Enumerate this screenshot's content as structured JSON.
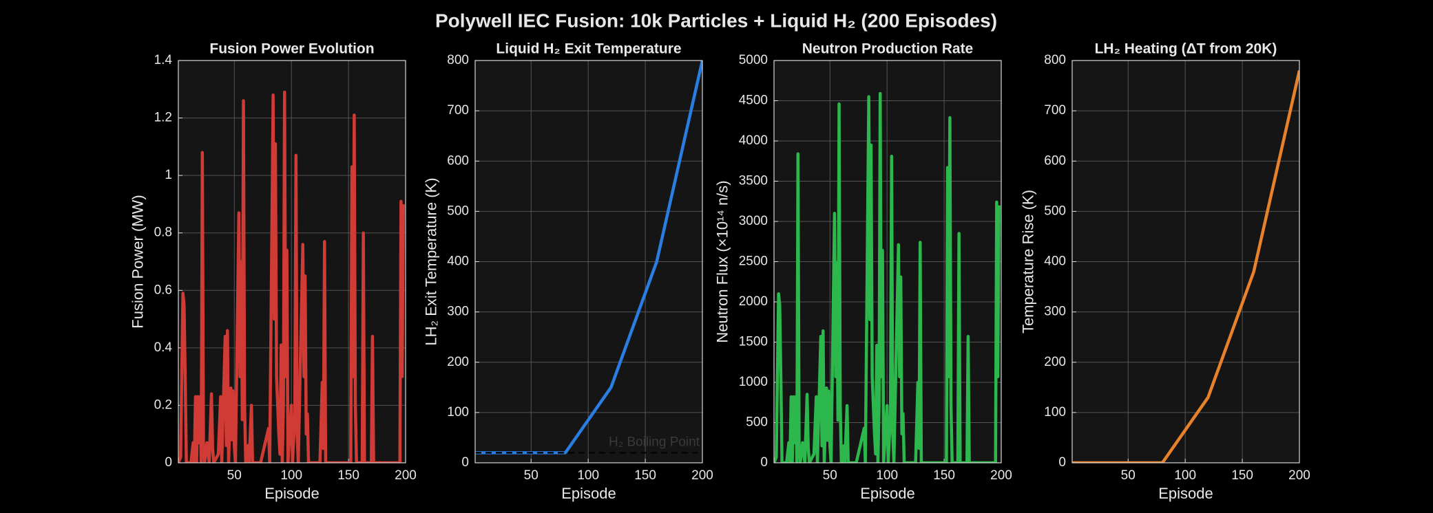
{
  "title": "Polywell IEC Fusion: 10k Particles + Liquid H₂ (200 Episodes)",
  "chart_data": [
    {
      "type": "line",
      "title": "Fusion Power Evolution",
      "xlabel": "Episode",
      "ylabel": "Fusion Power (MW)",
      "x": [
        1,
        3,
        5,
        6,
        7,
        8,
        12,
        14,
        15,
        16,
        17,
        18,
        19,
        20,
        21,
        22,
        23,
        24,
        26,
        28,
        30,
        31,
        32,
        36,
        38,
        39,
        42,
        43,
        44,
        45,
        47,
        48,
        49,
        50,
        51,
        54,
        55,
        56,
        57,
        58,
        59,
        60,
        62,
        63,
        65,
        66,
        70,
        73,
        80,
        81,
        84,
        85,
        86,
        87,
        88,
        89,
        90,
        91,
        92,
        93,
        94,
        95,
        96,
        97,
        100,
        101,
        103,
        104,
        105,
        106,
        110,
        111,
        112,
        113,
        114,
        115,
        125,
        127,
        128,
        129,
        130,
        140,
        152,
        153,
        154,
        155,
        156,
        157,
        162,
        163,
        164,
        170,
        171,
        172,
        195,
        196,
        197,
        198
      ],
      "values": [
        0,
        0.02,
        0.59,
        0.55,
        0.3,
        0,
        0,
        0.07,
        0,
        0.23,
        0,
        0.23,
        0.07,
        0.23,
        0,
        1.08,
        0.06,
        0,
        0.07,
        0,
        0.24,
        0.05,
        0,
        0.03,
        0.23,
        0,
        0.44,
        0.06,
        0.46,
        0,
        0.26,
        0.08,
        0.25,
        0.06,
        0,
        0.87,
        0.3,
        0.7,
        0.15,
        1.26,
        0.2,
        0,
        0.06,
        0,
        0.2,
        0,
        0,
        0,
        0.12,
        0,
        1.28,
        0.5,
        1.11,
        0.3,
        0.2,
        0.1,
        0.03,
        0.41,
        0,
        0.2,
        1.29,
        0.3,
        0.74,
        0,
        0.2,
        0,
        0.17,
        1.07,
        0.1,
        0,
        0.76,
        0.3,
        0.65,
        0.1,
        0.17,
        0,
        0,
        0.28,
        0.05,
        0.77,
        0,
        0,
        0,
        1.03,
        0.3,
        1.21,
        0.2,
        0,
        0,
        0.8,
        0,
        0,
        0.44,
        0,
        0,
        0.91,
        0.3,
        0.9
      ],
      "color": "#d13b35",
      "xlim": [
        1,
        200
      ],
      "ylim": [
        0,
        1.4
      ],
      "xticks": [
        50,
        100,
        150,
        200
      ],
      "yticks": [
        0,
        0.2,
        0.4,
        0.6,
        0.8,
        1,
        1.2,
        1.4
      ],
      "grid": true
    },
    {
      "type": "line",
      "title": "Liquid H₂ Exit Temperature",
      "xlabel": "Episode",
      "ylabel": "LH₂ Exit Temperature (K)",
      "x": [
        1,
        80,
        120,
        160,
        200
      ],
      "values": [
        20,
        20,
        150,
        400,
        800
      ],
      "color": "#2a7de1",
      "xlim": [
        1,
        200
      ],
      "ylim": [
        0,
        800
      ],
      "xticks": [
        50,
        100,
        150,
        200
      ],
      "yticks": [
        0,
        100,
        200,
        300,
        400,
        500,
        600,
        700,
        800
      ],
      "grid": true,
      "reference_line": {
        "value": 20,
        "label": "H₂ Boiling Point"
      }
    },
    {
      "type": "line",
      "title": "Neutron Production Rate",
      "xlabel": "Episode",
      "ylabel": "Neutron Flux (×10¹⁴ n/s)",
      "x": [
        1,
        3,
        5,
        6,
        7,
        8,
        12,
        14,
        15,
        16,
        17,
        18,
        19,
        20,
        21,
        22,
        23,
        24,
        26,
        28,
        30,
        31,
        32,
        36,
        38,
        39,
        42,
        43,
        44,
        45,
        47,
        48,
        49,
        50,
        51,
        54,
        55,
        56,
        57,
        58,
        59,
        60,
        62,
        63,
        65,
        66,
        70,
        73,
        80,
        81,
        84,
        85,
        86,
        87,
        88,
        89,
        90,
        91,
        92,
        93,
        94,
        95,
        96,
        97,
        100,
        101,
        103,
        104,
        105,
        106,
        110,
        111,
        112,
        113,
        114,
        115,
        125,
        127,
        128,
        129,
        130,
        140,
        152,
        153,
        154,
        155,
        156,
        157,
        162,
        163,
        164,
        170,
        171,
        172,
        195,
        196,
        197,
        198
      ],
      "values": [
        0,
        70,
        2100,
        1960,
        1070,
        0,
        0,
        250,
        0,
        820,
        0,
        820,
        250,
        820,
        0,
        3840,
        210,
        0,
        250,
        0,
        850,
        180,
        0,
        110,
        820,
        0,
        1570,
        210,
        1640,
        0,
        930,
        280,
        890,
        210,
        0,
        3100,
        1070,
        2490,
        530,
        4460,
        710,
        0,
        210,
        0,
        710,
        0,
        0,
        0,
        430,
        0,
        4550,
        1780,
        3950,
        1070,
        710,
        360,
        110,
        1460,
        0,
        710,
        4590,
        1070,
        2640,
        0,
        710,
        0,
        610,
        3810,
        360,
        0,
        2710,
        1070,
        2310,
        360,
        610,
        0,
        0,
        1000,
        180,
        2740,
        0,
        0,
        0,
        3670,
        1070,
        4290,
        710,
        0,
        0,
        2850,
        0,
        0,
        1570,
        0,
        0,
        3240,
        1070,
        3200
      ],
      "color": "#2db84d",
      "xlim": [
        1,
        200
      ],
      "ylim": [
        0,
        5000
      ],
      "xticks": [
        50,
        100,
        150,
        200
      ],
      "yticks": [
        0,
        500,
        1000,
        1500,
        2000,
        2500,
        3000,
        3500,
        4000,
        4500,
        5000
      ],
      "grid": true
    },
    {
      "type": "line",
      "title": "LH₂ Heating (ΔT from 20K)",
      "xlabel": "Episode",
      "ylabel": "Temperature Rise (K)",
      "x": [
        1,
        80,
        120,
        160,
        200
      ],
      "values": [
        0,
        0,
        130,
        380,
        780
      ],
      "color": "#e8822a",
      "xlim": [
        1,
        200
      ],
      "ylim": [
        0,
        800
      ],
      "xticks": [
        50,
        100,
        150,
        200
      ],
      "yticks": [
        0,
        100,
        200,
        300,
        400,
        500,
        600,
        700,
        800
      ],
      "grid": true
    }
  ]
}
